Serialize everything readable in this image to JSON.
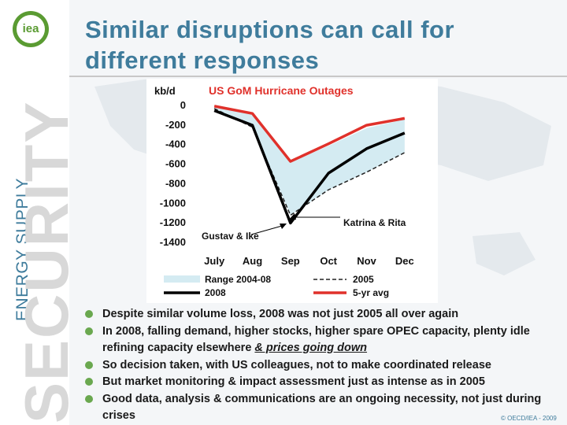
{
  "logo": {
    "text": "iea"
  },
  "title": {
    "line1": "Similar disruptions can call for",
    "line2": "different responses"
  },
  "sidebar": {
    "energy": "ENERGY SUPPLY",
    "security": "SECURITY"
  },
  "chart_data": {
    "type": "line",
    "title": "US GoM Hurricane Outages",
    "ylabel": "kb/d",
    "ylim": [
      -1400,
      0
    ],
    "yticks": [
      "0",
      "-200",
      "-400",
      "-600",
      "-800",
      "-1000",
      "-1200",
      "-1400"
    ],
    "x": [
      "July",
      "Aug",
      "Sep",
      "Oct",
      "Nov",
      "Dec"
    ],
    "grid": false,
    "legend_position": "bottom",
    "range": {
      "name": "Range 2004-08",
      "color": "#d4ebf2",
      "upper": [
        -10,
        -100,
        -590,
        -420,
        -240,
        -150
      ],
      "lower": [
        -40,
        -230,
        -1130,
        -870,
        -690,
        -490
      ]
    },
    "series": [
      {
        "name": "2005",
        "style": "dashed",
        "color": "#222222",
        "values": [
          -40,
          -230,
          -1130,
          -870,
          -690,
          -490
        ]
      },
      {
        "name": "2008",
        "style": "solid",
        "color": "#000000",
        "values": [
          -60,
          -210,
          -1210,
          -700,
          -450,
          -290
        ]
      },
      {
        "name": "5-yr avg",
        "style": "solid",
        "color": "#e0312b",
        "values": [
          -15,
          -90,
          -580,
          -400,
          -210,
          -140
        ]
      }
    ],
    "annotations": [
      {
        "text": "Katrina & Rita"
      },
      {
        "text": "Gustav & Ike"
      }
    ]
  },
  "bullets": [
    {
      "text": "Despite similar volume loss, 2008 was not just 2005 all over again"
    },
    {
      "text": "In 2008, falling demand, higher stocks, higher spare OPEC capacity, plenty idle refining capacity elsewhere ",
      "emphasis": "& prices going down"
    },
    {
      "text": "So decision taken, with US colleagues, not to make coordinated release"
    },
    {
      "text": "But market monitoring & impact assessment just as intense as in 2005"
    },
    {
      "text": "Good data, analysis & communications are an ongoing necessity, not just during crises"
    }
  ],
  "footer": {
    "copyright": "© OECD/IEA - 2009"
  },
  "colors": {
    "title": "#3f7c9c",
    "bullet": "#6aa84f",
    "accent_red": "#e0312b",
    "range_fill": "#d4ebf2"
  },
  "icons": {
    "bullet": "green-dot-icon",
    "background": "world-map-icon"
  }
}
